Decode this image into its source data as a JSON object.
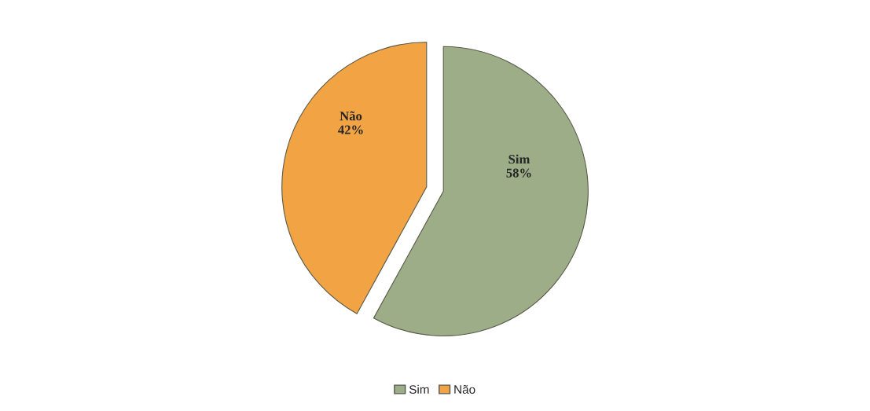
{
  "chart_data": {
    "type": "pie",
    "categories": [
      "Sim",
      "Não"
    ],
    "values": [
      58,
      42
    ],
    "colors": [
      "#9cad88",
      "#f2a444"
    ],
    "value_labels": [
      "58%",
      "42%"
    ],
    "legend": "bottom"
  }
}
